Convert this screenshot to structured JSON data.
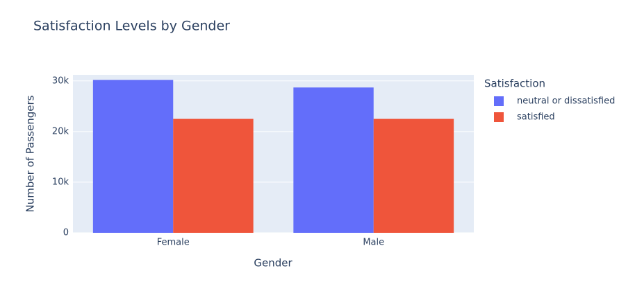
{
  "chart_data": {
    "type": "bar",
    "title": "Satisfaction Levels by Gender",
    "x_label": "Gender",
    "y_label": "Number of Passengers",
    "categories": [
      "Female",
      "Male"
    ],
    "series": [
      {
        "name": "neutral or dissatisfied",
        "color": "#636efa",
        "values": [
          30200,
          28700
        ]
      },
      {
        "name": "satisfied",
        "color": "#ef553b",
        "values": [
          22500,
          22500
        ]
      }
    ],
    "legend_title": "Satisfaction",
    "legend": "right",
    "ylim": [
      0,
      31200
    ],
    "yticks": [
      0,
      {
        "value": 10000,
        "label": "10k"
      },
      {
        "value": 20000,
        "label": "20k"
      },
      {
        "value": 30000,
        "label": "30k"
      }
    ],
    "grid": true
  }
}
